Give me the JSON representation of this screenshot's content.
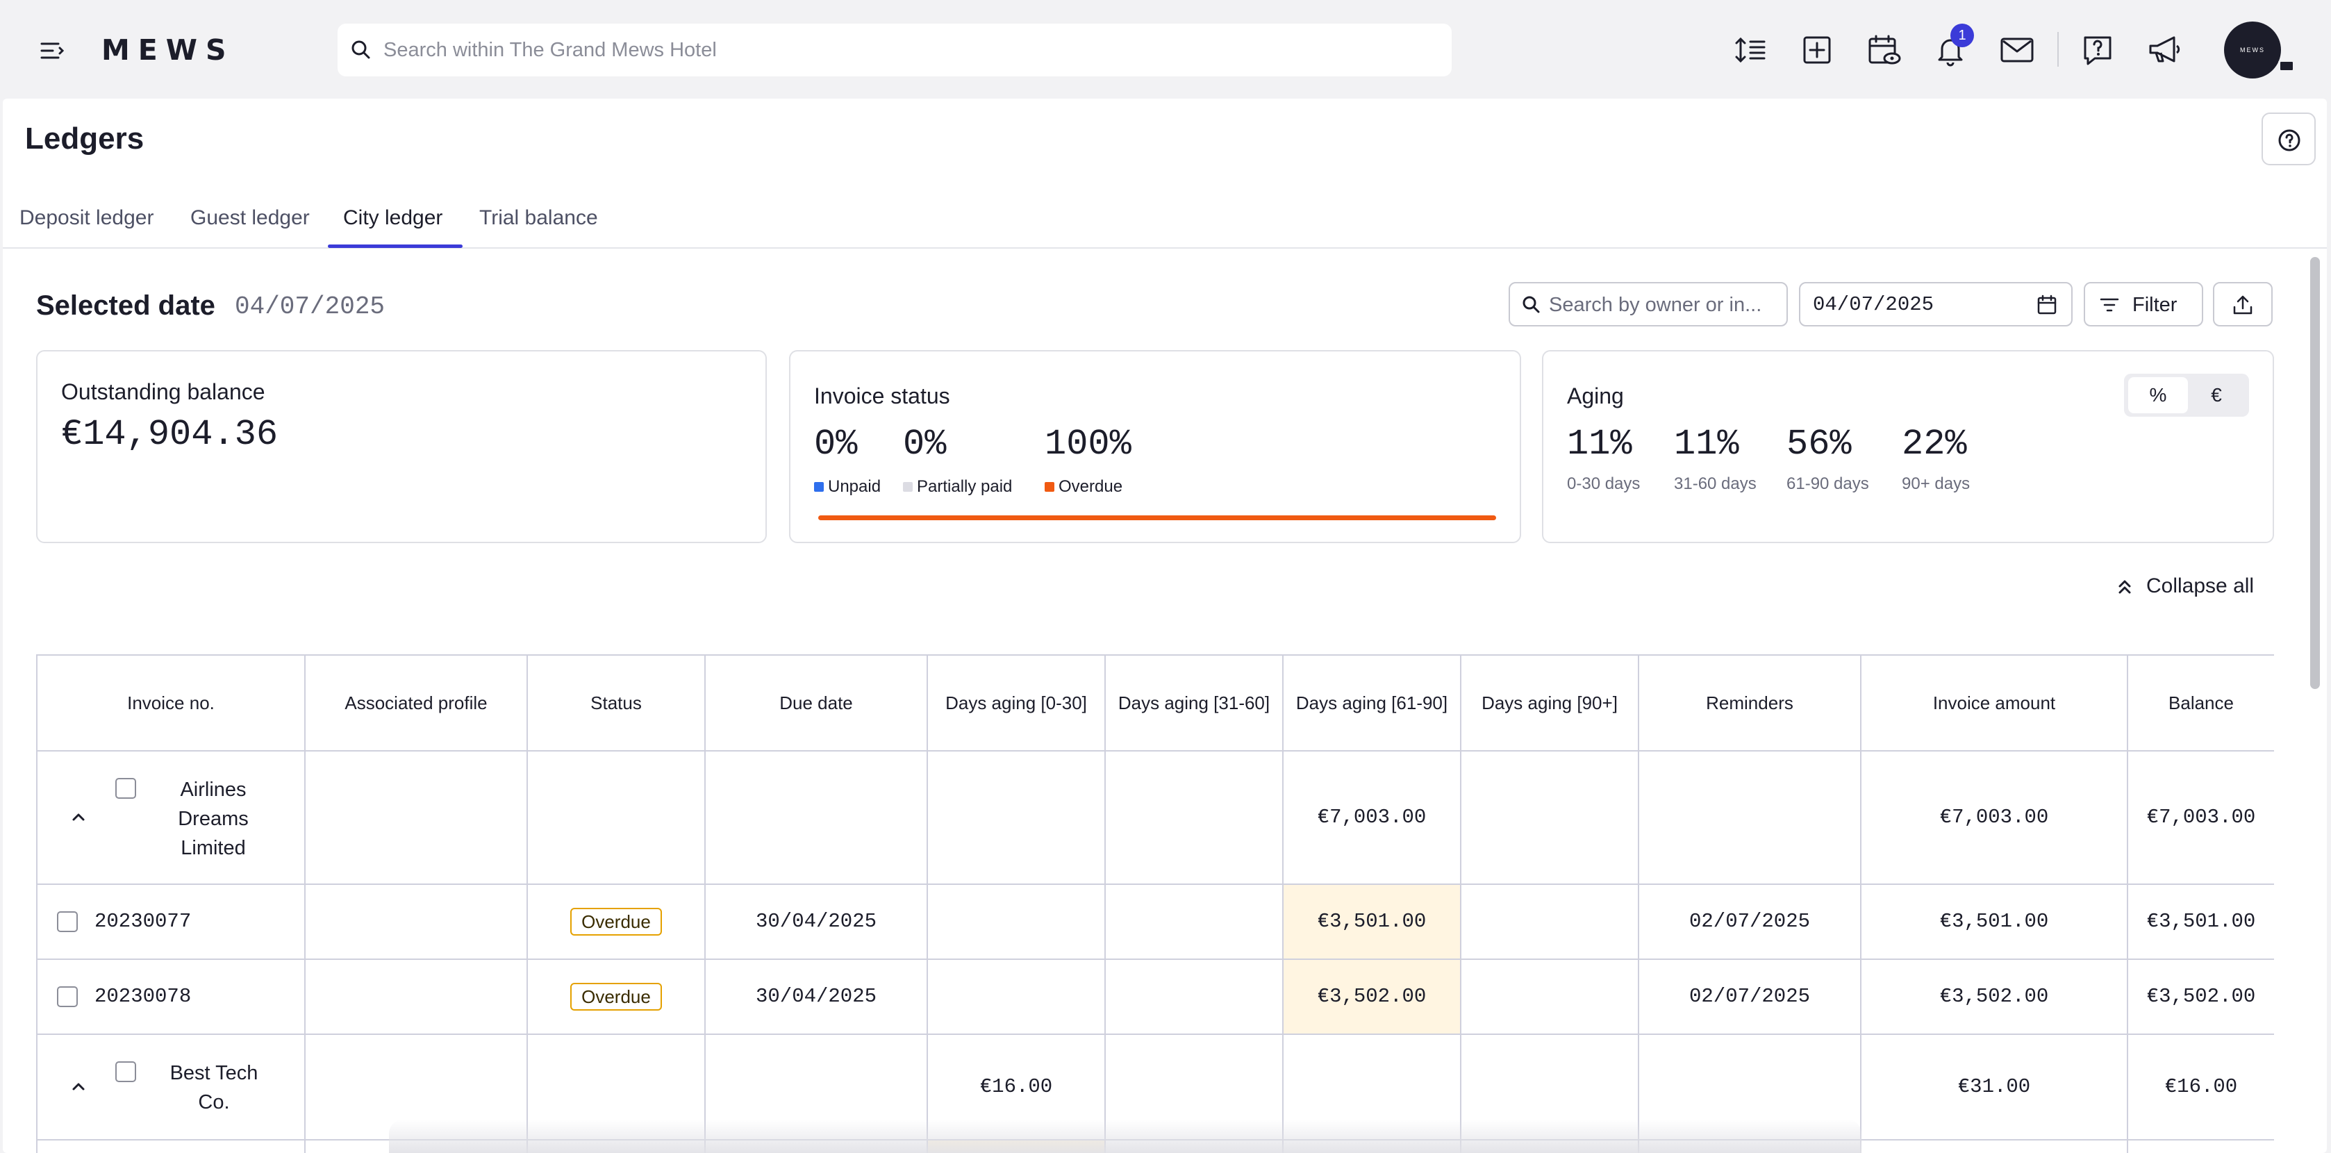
{
  "topbar": {
    "logo": "MEWS",
    "search_placeholder": "Search within The Grand Mews Hotel",
    "notifications_count": "1",
    "avatar_text": "MEWS",
    "icons": [
      "menu-icon",
      "search-icon",
      "line-height-icon",
      "add-square-icon",
      "calendar-eye-icon",
      "bell-icon",
      "mail-icon",
      "help-chat-icon",
      "megaphone-icon"
    ]
  },
  "page": {
    "title": "Ledgers",
    "tabs": [
      {
        "label": "Deposit ledger"
      },
      {
        "label": "Guest ledger"
      },
      {
        "label": "City ledger"
      },
      {
        "label": "Trial balance"
      }
    ],
    "active_tab": "City ledger"
  },
  "controls": {
    "selected_label": "Selected date",
    "selected_date": "04/07/2025",
    "search_placeholder": "Search by owner or in...",
    "date_value": "04/07/2025",
    "filter_label": "Filter"
  },
  "cards": {
    "outstanding": {
      "title": "Outstanding balance",
      "value": "€14,904.36"
    },
    "invoice_status": {
      "title": "Invoice status",
      "items": [
        {
          "value": "0%",
          "label": "Unpaid",
          "color": "#2f6fed"
        },
        {
          "value": "0%",
          "label": "Partially paid",
          "color": "#dcdce3"
        },
        {
          "value": "100%",
          "label": "Overdue",
          "color": "#f05a12"
        }
      ],
      "bar_color": "#f05a12"
    },
    "aging": {
      "title": "Aging",
      "toggle": [
        "%",
        "€"
      ],
      "toggle_selected": "%",
      "items": [
        {
          "value": "11%",
          "label": "0-30 days"
        },
        {
          "value": "11%",
          "label": "31-60 days"
        },
        {
          "value": "56%",
          "label": "61-90 days"
        },
        {
          "value": "22%",
          "label": "90+ days"
        }
      ]
    }
  },
  "collapse_label": "Collapse all",
  "table": {
    "headers": [
      "Invoice no.",
      "Associated profile",
      "Status",
      "Due date",
      "Days aging [0-30]",
      "Days aging [31-60]",
      "Days aging [61-90]",
      "Days aging [90+]",
      "Reminders",
      "Invoice amount",
      "Balance"
    ],
    "groups": [
      {
        "name": "Airlines Dreams Limited",
        "d0_30": "",
        "d31_60": "",
        "d61_90": "€7,003.00",
        "d90": "",
        "invoice_amount": "€7,003.00",
        "balance": "€7,003.00",
        "rows": [
          {
            "invoice": "20230077",
            "profile": "",
            "status": "Overdue",
            "due": "30/04/2025",
            "d0_30": "",
            "d31_60": "",
            "d61_90": "€3,501.00",
            "d90": "",
            "reminders": "02/07/2025",
            "invoice_amount": "€3,501.00",
            "balance": "€3,501.00"
          },
          {
            "invoice": "20230078",
            "profile": "",
            "status": "Overdue",
            "due": "30/04/2025",
            "d0_30": "",
            "d31_60": "",
            "d61_90": "€3,502.00",
            "d90": "",
            "reminders": "02/07/2025",
            "invoice_amount": "€3,502.00",
            "balance": "€3,502.00"
          }
        ]
      },
      {
        "name": "Best Tech Co.",
        "d0_30": "€16.00",
        "d31_60": "",
        "d61_90": "",
        "d90": "",
        "invoice_amount": "€31.00",
        "balance": "€16.00",
        "rows": []
      }
    ]
  }
}
